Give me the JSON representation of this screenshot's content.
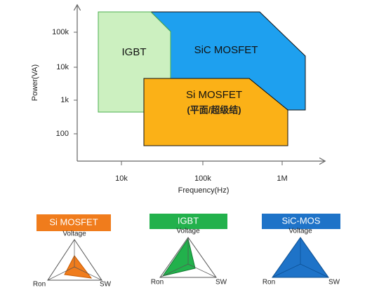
{
  "chart": {
    "y_axis_title": "Power(VA)",
    "x_axis_title": "Frequency(Hz)",
    "y_tick_labels": [
      "100k",
      "10k",
      "1k",
      "100"
    ],
    "x_tick_labels": [
      "10k",
      "100k",
      "1M"
    ],
    "regions": [
      {
        "label": "IGBT"
      },
      {
        "label": "SiC MOSFET"
      },
      {
        "label": "Si MOSFET",
        "sublabel": "(平面/超级结)"
      }
    ]
  },
  "radars": [
    {
      "title": "Si MOSFET",
      "axes": [
        "Voltage",
        "Ron",
        "SW"
      ]
    },
    {
      "title": "IGBT",
      "axes": [
        "Voltage",
        "Ron",
        "SW"
      ]
    },
    {
      "title": "SiC-MOS",
      "axes": [
        "Voltage",
        "Ron",
        "SW"
      ]
    }
  ]
}
